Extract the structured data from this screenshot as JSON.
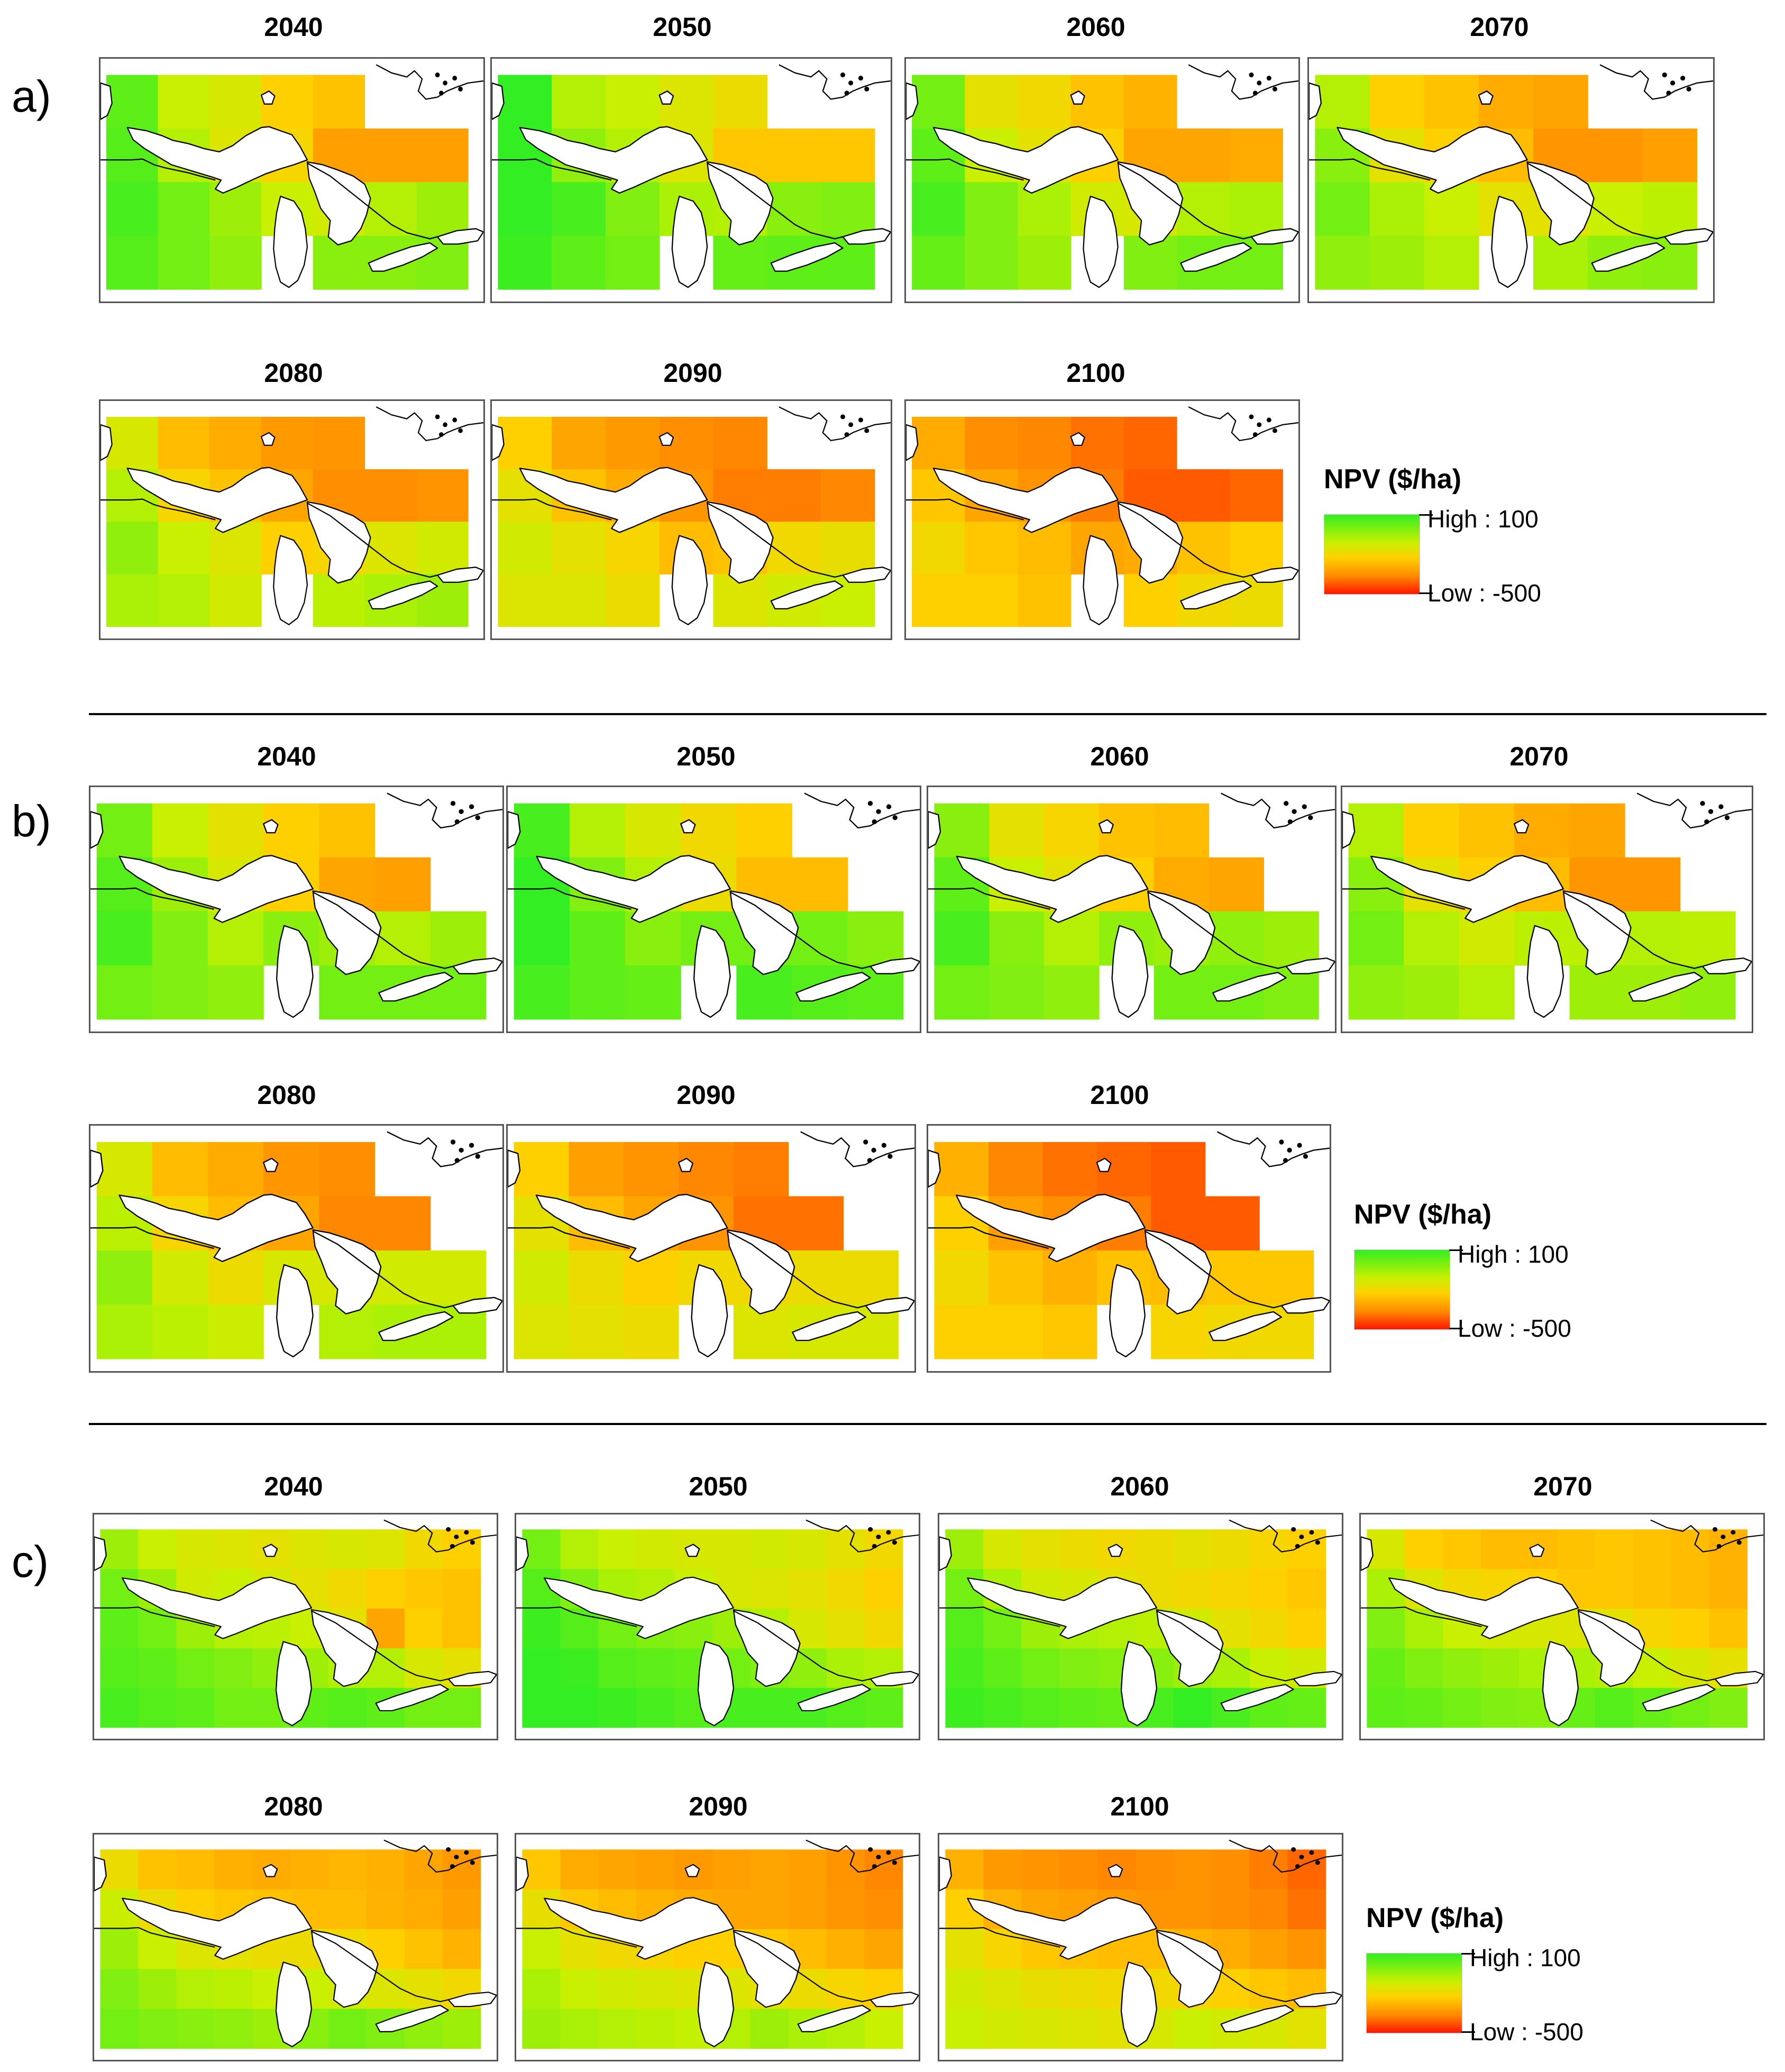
{
  "sections": [
    {
      "label": "a)",
      "years": [
        "2040",
        "2050",
        "2060",
        "2070",
        "2080",
        "2090",
        "2100"
      ]
    },
    {
      "label": "b)",
      "years": [
        "2040",
        "2050",
        "2060",
        "2070",
        "2080",
        "2090",
        "2100"
      ]
    },
    {
      "label": "c)",
      "years": [
        "2040",
        "2050",
        "2060",
        "2070",
        "2080",
        "2090",
        "2100"
      ]
    }
  ],
  "legend": {
    "title": "NPV ($/ha)",
    "high_label": "High : 100",
    "low_label": "Low : -500"
  },
  "colors": {
    "high": "#33ee22",
    "mid": "#ffd000",
    "low": "#ff1500",
    "water": "#ffffff",
    "outline": "#000000"
  },
  "grids": {
    "a": [
      [
        [
          0.1,
          0.35,
          0.4,
          0.55,
          0.6,
          -1,
          -1
        ],
        [
          0.08,
          0.3,
          0.42,
          0.52,
          0.72,
          0.72,
          0.72
        ],
        [
          0.05,
          0.15,
          0.25,
          0.35,
          0.38,
          0.3,
          0.25
        ],
        [
          0.08,
          0.15,
          0.22,
          -1,
          0.2,
          0.2,
          0.18
        ]
      ],
      [
        [
          0.0,
          0.3,
          0.35,
          0.42,
          0.48,
          -1,
          -1
        ],
        [
          -0.05,
          0.22,
          0.3,
          0.42,
          0.58,
          0.58,
          0.58
        ],
        [
          -0.1,
          0.05,
          0.18,
          0.28,
          0.3,
          0.2,
          0.18
        ],
        [
          0.02,
          0.1,
          0.15,
          -1,
          0.12,
          0.1,
          0.1
        ]
      ],
      [
        [
          0.15,
          0.45,
          0.5,
          0.6,
          0.65,
          -1,
          -1
        ],
        [
          0.1,
          0.35,
          0.45,
          0.55,
          0.7,
          0.7,
          0.68
        ],
        [
          0.05,
          0.18,
          0.28,
          0.38,
          0.4,
          0.3,
          0.28
        ],
        [
          0.12,
          0.18,
          0.25,
          -1,
          0.18,
          0.15,
          0.15
        ]
      ],
      [
        [
          0.3,
          0.55,
          0.6,
          0.68,
          0.7,
          -1,
          -1
        ],
        [
          0.2,
          0.45,
          0.55,
          0.62,
          0.75,
          0.75,
          0.72
        ],
        [
          0.15,
          0.28,
          0.35,
          0.45,
          0.45,
          0.35,
          0.32
        ],
        [
          0.22,
          0.25,
          0.3,
          -1,
          0.28,
          0.22,
          0.2
        ]
      ],
      [
        [
          0.4,
          0.62,
          0.68,
          0.74,
          0.75,
          -1,
          -1
        ],
        [
          0.3,
          0.52,
          0.6,
          0.7,
          0.78,
          0.78,
          0.76
        ],
        [
          0.22,
          0.35,
          0.42,
          0.55,
          0.52,
          0.42,
          0.38
        ],
        [
          0.28,
          0.3,
          0.38,
          -1,
          0.32,
          0.28,
          0.25
        ]
      ],
      [
        [
          0.55,
          0.7,
          0.74,
          0.78,
          0.8,
          -1,
          -1
        ],
        [
          0.45,
          0.6,
          0.68,
          0.75,
          0.82,
          0.82,
          0.8
        ],
        [
          0.38,
          0.45,
          0.52,
          0.62,
          0.6,
          0.5,
          0.46
        ],
        [
          0.42,
          0.42,
          0.48,
          -1,
          0.42,
          0.38,
          0.35
        ]
      ],
      [
        [
          0.68,
          0.78,
          0.8,
          0.84,
          0.86,
          -1,
          -1
        ],
        [
          0.58,
          0.7,
          0.76,
          0.82,
          0.88,
          0.88,
          0.86
        ],
        [
          0.5,
          0.58,
          0.62,
          0.7,
          0.68,
          0.6,
          0.55
        ],
        [
          0.55,
          0.55,
          0.6,
          -1,
          0.55,
          0.5,
          0.48
        ]
      ]
    ],
    "b": [
      [
        [
          0.15,
          0.35,
          0.45,
          0.55,
          0.6,
          -1,
          -1
        ],
        [
          0.08,
          0.25,
          0.4,
          0.55,
          0.7,
          0.72,
          -1
        ],
        [
          0.05,
          0.18,
          0.3,
          0.2,
          0.25,
          0.3,
          0.25
        ],
        [
          0.15,
          0.18,
          0.22,
          -1,
          0.15,
          0.15,
          0.15
        ]
      ],
      [
        [
          0.05,
          0.3,
          0.4,
          0.5,
          0.55,
          -1,
          -1
        ],
        [
          -0.05,
          0.18,
          0.3,
          0.48,
          0.62,
          0.62,
          -1
        ],
        [
          -0.1,
          0.1,
          0.2,
          0.15,
          0.15,
          0.15,
          0.2
        ],
        [
          0.05,
          0.1,
          0.12,
          -1,
          0.05,
          0.08,
          0.1
        ]
      ],
      [
        [
          0.2,
          0.45,
          0.52,
          0.6,
          0.62,
          -1,
          -1
        ],
        [
          0.1,
          0.35,
          0.45,
          0.55,
          0.68,
          0.7,
          -1
        ],
        [
          0.05,
          0.2,
          0.3,
          0.22,
          0.25,
          0.22,
          0.25
        ],
        [
          0.15,
          0.18,
          0.22,
          -1,
          0.15,
          0.15,
          0.18
        ]
      ],
      [
        [
          0.3,
          0.55,
          0.6,
          0.68,
          0.7,
          -1,
          -1
        ],
        [
          0.2,
          0.45,
          0.55,
          0.62,
          0.75,
          0.75,
          -1
        ],
        [
          0.15,
          0.3,
          0.38,
          0.32,
          0.32,
          0.3,
          0.32
        ],
        [
          0.22,
          0.25,
          0.3,
          -1,
          0.25,
          0.25,
          0.22
        ]
      ],
      [
        [
          0.4,
          0.62,
          0.68,
          0.75,
          0.78,
          -1,
          -1
        ],
        [
          0.32,
          0.52,
          0.62,
          0.7,
          0.8,
          0.8,
          -1
        ],
        [
          0.22,
          0.38,
          0.48,
          0.4,
          0.4,
          0.38,
          0.38
        ],
        [
          0.28,
          0.32,
          0.36,
          -1,
          0.3,
          0.28,
          0.28
        ]
      ],
      [
        [
          0.55,
          0.72,
          0.76,
          0.8,
          0.82,
          -1,
          -1
        ],
        [
          0.45,
          0.62,
          0.7,
          0.76,
          0.84,
          0.84,
          -1
        ],
        [
          0.38,
          0.48,
          0.55,
          0.5,
          0.5,
          0.48,
          0.48
        ],
        [
          0.42,
          0.45,
          0.48,
          -1,
          0.42,
          0.4,
          0.4
        ]
      ],
      [
        [
          0.66,
          0.8,
          0.84,
          0.86,
          0.88,
          -1,
          -1
        ],
        [
          0.55,
          0.72,
          0.78,
          0.82,
          0.88,
          0.88,
          -1
        ],
        [
          0.5,
          0.6,
          0.66,
          0.6,
          0.62,
          0.58,
          0.58
        ],
        [
          0.55,
          0.55,
          0.58,
          -1,
          0.52,
          0.5,
          0.5
        ]
      ]
    ],
    "c": [
      [
        [
          0.25,
          0.35,
          0.4,
          0.42,
          0.45,
          0.42,
          0.4,
          0.42,
          0.5,
          0.55
        ],
        [
          0.15,
          0.25,
          0.38,
          0.35,
          0.4,
          0.45,
          0.5,
          0.55,
          0.58,
          0.6
        ],
        [
          0.1,
          0.15,
          0.25,
          0.3,
          0.32,
          0.35,
          0.45,
          0.7,
          0.55,
          0.6
        ],
        [
          0.08,
          0.1,
          0.15,
          0.18,
          0.22,
          0.25,
          0.3,
          0.3,
          0.4,
          0.45
        ],
        [
          0.05,
          0.08,
          0.1,
          0.15,
          0.15,
          0.1,
          0.08,
          0.1,
          0.15,
          0.15
        ]
      ],
      [
        [
          0.15,
          0.3,
          0.35,
          0.38,
          0.4,
          0.4,
          0.38,
          0.4,
          0.45,
          0.5
        ],
        [
          0.08,
          0.18,
          0.28,
          0.3,
          0.35,
          0.4,
          0.42,
          0.45,
          0.5,
          0.55
        ],
        [
          0.02,
          0.08,
          0.15,
          0.18,
          0.2,
          0.25,
          0.3,
          0.4,
          0.45,
          0.5
        ],
        [
          -0.02,
          0.02,
          0.08,
          0.1,
          0.12,
          0.15,
          0.18,
          0.22,
          0.28,
          0.3
        ],
        [
          -0.05,
          0.0,
          0.02,
          0.05,
          0.08,
          0.05,
          0.05,
          0.05,
          0.08,
          0.1
        ]
      ],
      [
        [
          0.25,
          0.4,
          0.45,
          0.48,
          0.5,
          0.48,
          0.45,
          0.48,
          0.52,
          0.55
        ],
        [
          0.15,
          0.28,
          0.38,
          0.4,
          0.45,
          0.48,
          0.5,
          0.52,
          0.55,
          0.58
        ],
        [
          0.08,
          0.15,
          0.25,
          0.28,
          0.3,
          0.32,
          0.38,
          0.45,
          0.5,
          0.55
        ],
        [
          0.05,
          0.1,
          0.15,
          0.18,
          0.2,
          0.2,
          0.25,
          0.28,
          0.35,
          0.38
        ],
        [
          0.02,
          0.05,
          0.08,
          0.1,
          0.12,
          0.05,
          0.0,
          0.05,
          0.1,
          0.12
        ]
      ],
      [
        [
          0.4,
          0.55,
          0.58,
          0.62,
          0.62,
          0.6,
          0.58,
          0.6,
          0.62,
          0.65
        ],
        [
          0.28,
          0.42,
          0.5,
          0.52,
          0.55,
          0.58,
          0.58,
          0.6,
          0.62,
          0.65
        ],
        [
          0.18,
          0.28,
          0.35,
          0.38,
          0.4,
          0.42,
          0.45,
          0.52,
          0.55,
          0.6
        ],
        [
          0.12,
          0.18,
          0.22,
          0.25,
          0.28,
          0.28,
          0.3,
          0.35,
          0.4,
          0.45
        ],
        [
          0.1,
          0.12,
          0.15,
          0.18,
          0.2,
          0.12,
          0.08,
          0.12,
          0.15,
          0.18
        ]
      ],
      [
        [
          0.48,
          0.6,
          0.62,
          0.66,
          0.68,
          0.66,
          0.64,
          0.66,
          0.7,
          0.74
        ],
        [
          0.36,
          0.48,
          0.55,
          0.58,
          0.6,
          0.62,
          0.62,
          0.65,
          0.68,
          0.72
        ],
        [
          0.25,
          0.35,
          0.42,
          0.45,
          0.48,
          0.48,
          0.5,
          0.55,
          0.6,
          0.65
        ],
        [
          0.18,
          0.25,
          0.3,
          0.32,
          0.35,
          0.35,
          0.38,
          0.42,
          0.45,
          0.5
        ],
        [
          0.15,
          0.18,
          0.2,
          0.22,
          0.25,
          0.2,
          0.15,
          0.18,
          0.22,
          0.25
        ]
      ],
      [
        [
          0.58,
          0.68,
          0.7,
          0.72,
          0.74,
          0.72,
          0.7,
          0.72,
          0.76,
          0.8
        ],
        [
          0.46,
          0.58,
          0.62,
          0.65,
          0.68,
          0.7,
          0.7,
          0.72,
          0.75,
          0.78
        ],
        [
          0.35,
          0.45,
          0.5,
          0.52,
          0.55,
          0.55,
          0.58,
          0.62,
          0.66,
          0.7
        ],
        [
          0.28,
          0.35,
          0.38,
          0.4,
          0.42,
          0.42,
          0.45,
          0.48,
          0.52,
          0.55
        ],
        [
          0.25,
          0.28,
          0.3,
          0.32,
          0.34,
          0.3,
          0.25,
          0.28,
          0.3,
          0.35
        ]
      ],
      [
        [
          0.66,
          0.74,
          0.76,
          0.78,
          0.8,
          0.78,
          0.76,
          0.78,
          0.82,
          0.86
        ],
        [
          0.55,
          0.65,
          0.7,
          0.72,
          0.74,
          0.76,
          0.76,
          0.78,
          0.8,
          0.84
        ],
        [
          0.45,
          0.52,
          0.58,
          0.6,
          0.62,
          0.62,
          0.65,
          0.68,
          0.72,
          0.76
        ],
        [
          0.38,
          0.42,
          0.46,
          0.48,
          0.5,
          0.5,
          0.52,
          0.55,
          0.58,
          0.62
        ],
        [
          0.35,
          0.38,
          0.4,
          0.42,
          0.44,
          0.4,
          0.35,
          0.38,
          0.4,
          0.44
        ]
      ]
    ]
  }
}
